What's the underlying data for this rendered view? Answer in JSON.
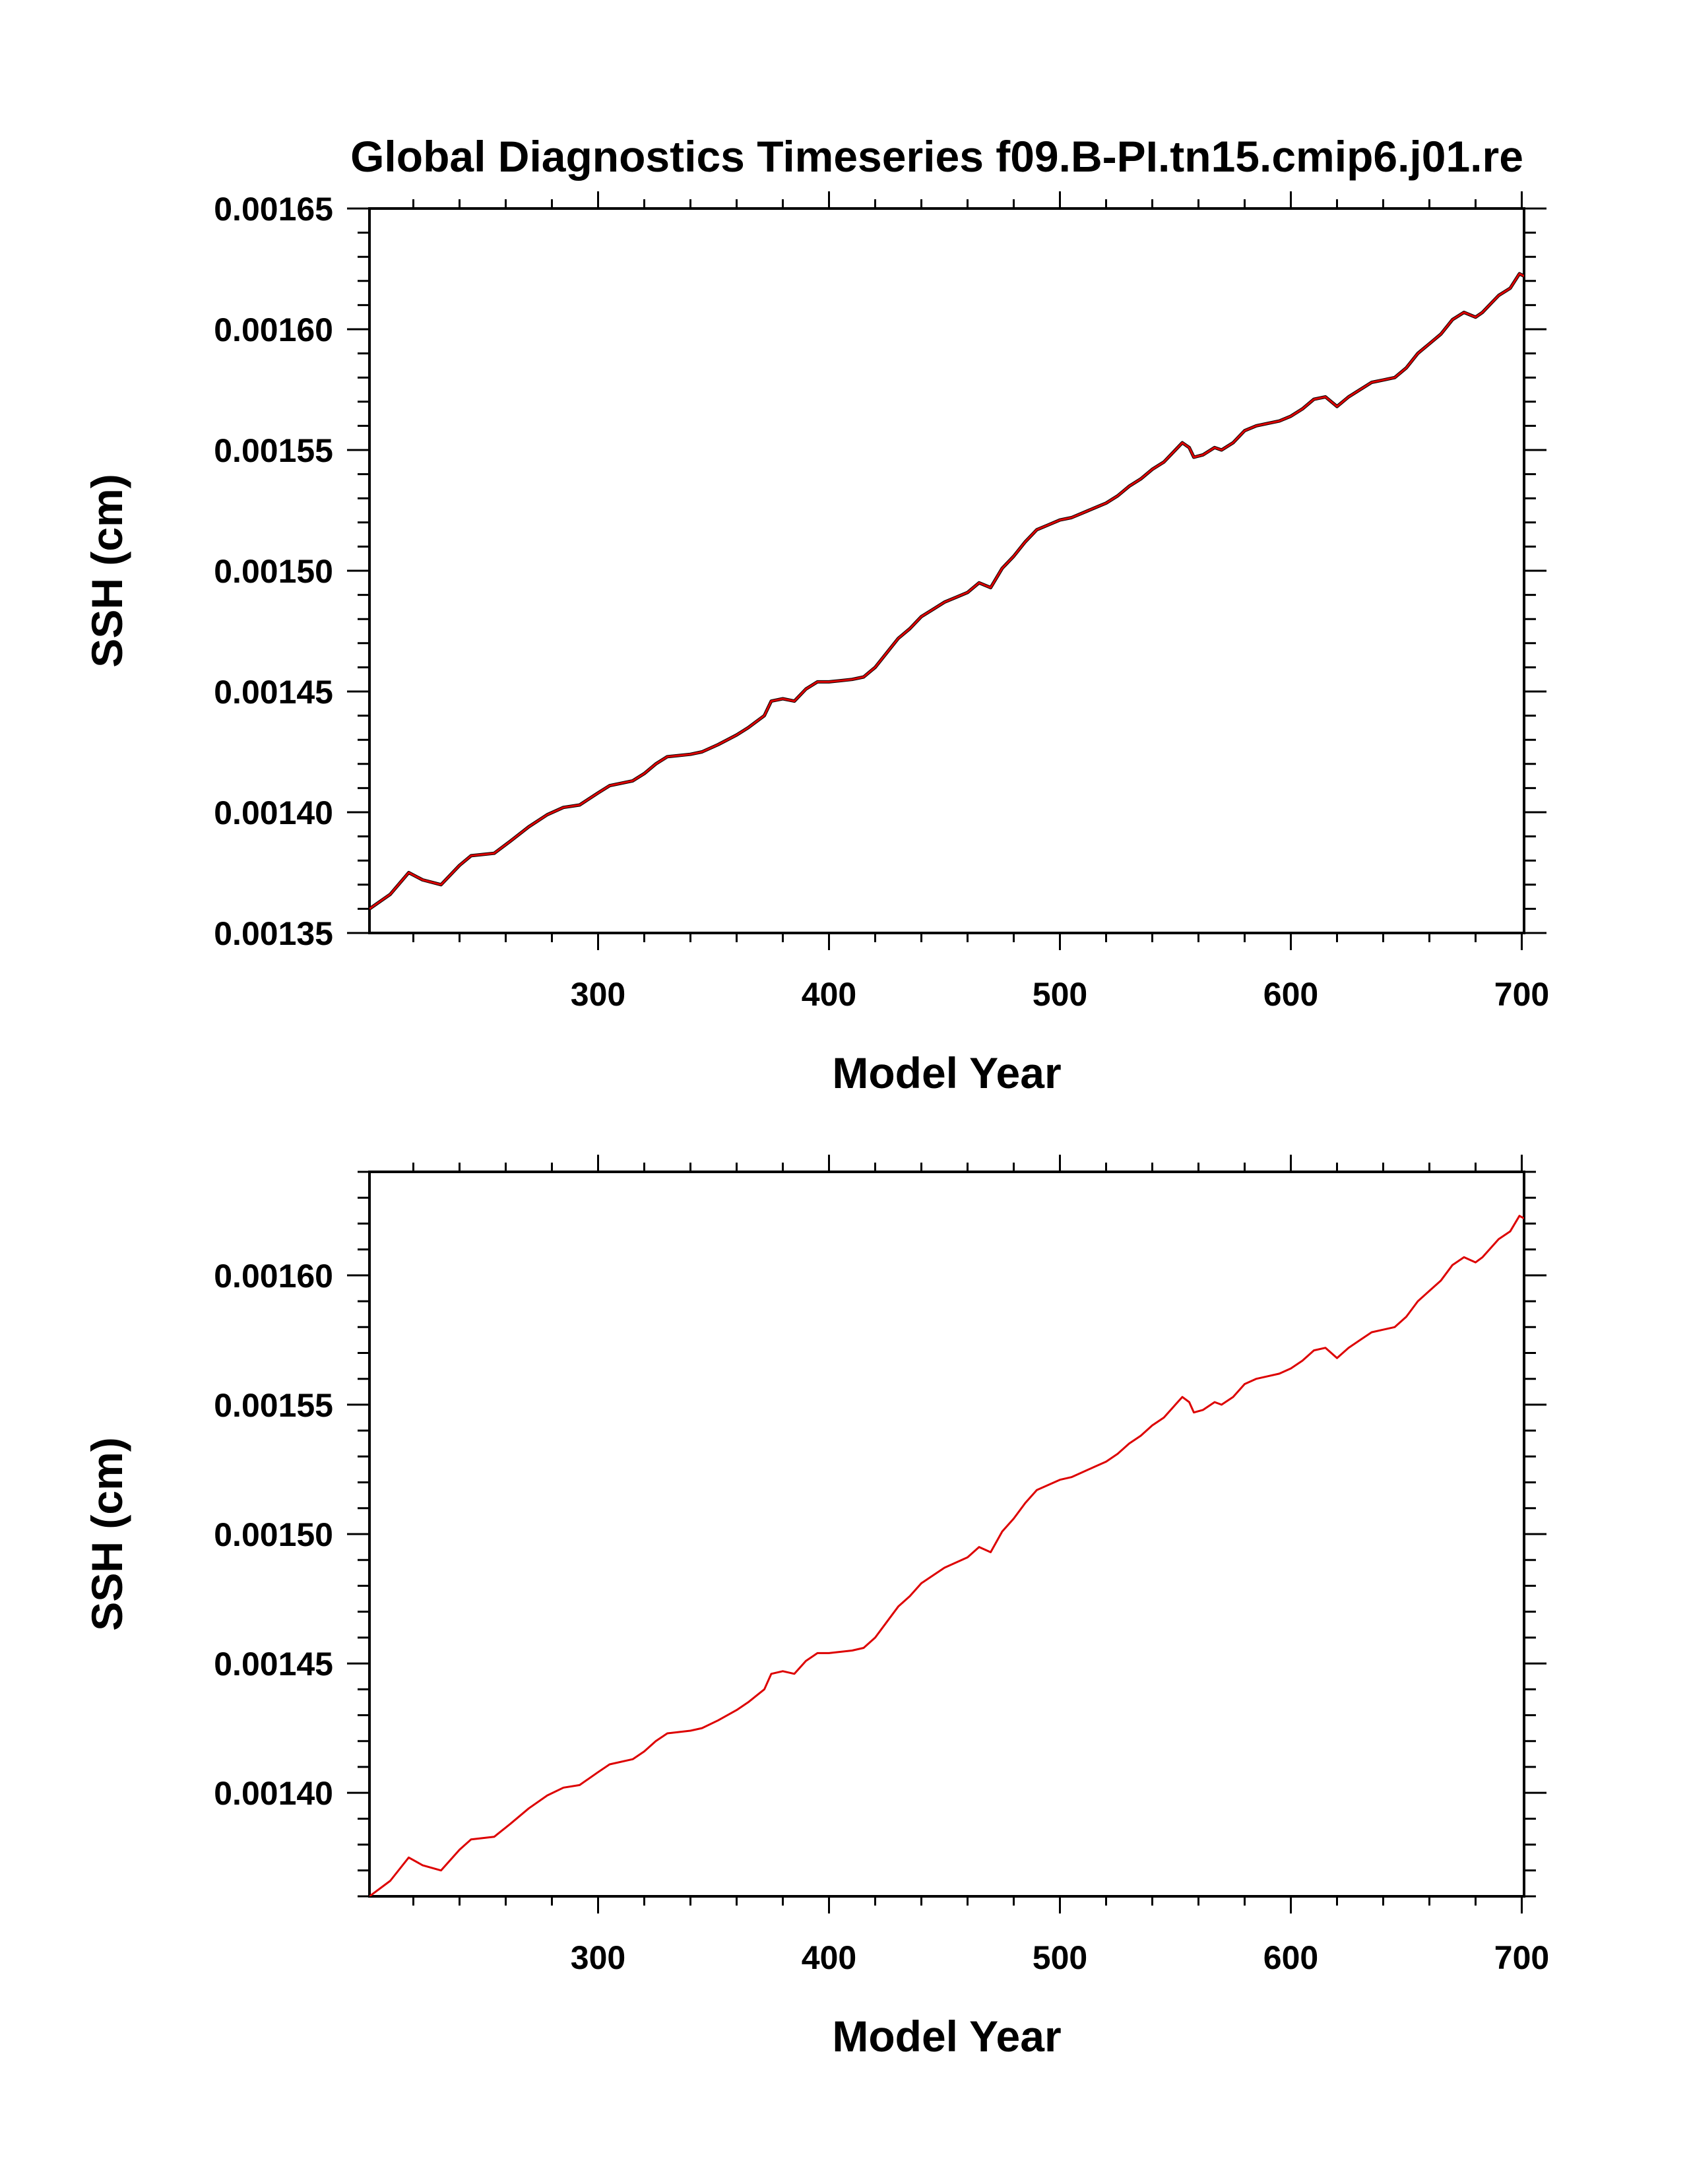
{
  "figure": {
    "title": "Global Diagnostics Timeseries f09.B-PI.tn15.cmip6.j01.re"
  },
  "chart_data": [
    {
      "type": "line",
      "panel": "top",
      "title": "Global Diagnostics Timeseries f09.B-PI.tn15.cmip6.j01.re",
      "xlabel": "Model Year",
      "ylabel": "SSH (cm)",
      "xlim": [
        201,
        701
      ],
      "ylim": [
        0.00135,
        0.00165
      ],
      "xticks": [
        300,
        400,
        500,
        600,
        700
      ],
      "xtick_labels": [
        "300",
        "400",
        "500",
        "600",
        "700"
      ],
      "yticks": [
        0.00135,
        0.0014,
        0.00145,
        0.0015,
        0.00155,
        0.0016,
        0.00165
      ],
      "ytick_labels": [
        "0.00135",
        "0.00140",
        "0.00145",
        "0.00150",
        "0.00155",
        "0.00160",
        "0.00165"
      ],
      "grid": false,
      "series": [
        {
          "color": "#000000",
          "x": [
            201,
            210,
            218,
            224,
            232,
            240,
            245,
            255,
            262,
            270,
            278,
            285,
            292,
            300,
            305,
            315,
            320,
            325,
            330,
            340,
            345,
            352,
            360,
            365,
            372,
            375,
            380,
            385,
            390,
            395,
            400,
            410,
            415,
            420,
            425,
            430,
            435,
            440,
            445,
            450,
            455,
            460,
            465,
            470,
            475,
            480,
            485,
            490,
            495,
            500,
            505,
            510,
            515,
            520,
            525,
            530,
            535,
            540,
            545,
            550,
            553,
            556,
            558,
            562,
            567,
            570,
            575,
            580,
            585,
            590,
            595,
            600,
            605,
            610,
            615,
            620,
            625,
            630,
            635,
            640,
            645,
            650,
            655,
            660,
            665,
            670,
            675,
            680,
            683,
            687,
            690,
            695,
            699,
            701
          ],
          "y": [
            0.00136,
            0.001366,
            0.001375,
            0.001372,
            0.00137,
            0.001378,
            0.001382,
            0.001383,
            0.001388,
            0.001394,
            0.001399,
            0.001402,
            0.001403,
            0.001408,
            0.001411,
            0.001413,
            0.001416,
            0.00142,
            0.001423,
            0.001424,
            0.001425,
            0.001428,
            0.001432,
            0.001435,
            0.00144,
            0.001446,
            0.001447,
            0.001446,
            0.001451,
            0.001454,
            0.001454,
            0.001455,
            0.001456,
            0.00146,
            0.001466,
            0.001472,
            0.001476,
            0.001481,
            0.001484,
            0.001487,
            0.001489,
            0.001491,
            0.001495,
            0.001493,
            0.001501,
            0.001506,
            0.001512,
            0.001517,
            0.001519,
            0.001521,
            0.001522,
            0.001524,
            0.001526,
            0.001528,
            0.001531,
            0.001535,
            0.001538,
            0.001542,
            0.001545,
            0.00155,
            0.001553,
            0.001551,
            0.001547,
            0.001548,
            0.001551,
            0.00155,
            0.001553,
            0.001558,
            0.00156,
            0.001561,
            0.001562,
            0.001564,
            0.001567,
            0.001571,
            0.001572,
            0.001568,
            0.001572,
            0.001575,
            0.001578,
            0.001579,
            0.00158,
            0.001584,
            0.00159,
            0.001594,
            0.001598,
            0.001604,
            0.001607,
            0.001605,
            0.001607,
            0.001611,
            0.001614,
            0.001617,
            0.001623,
            0.001622
          ]
        },
        {
          "color": "#dd0000",
          "x": [
            201,
            210,
            218,
            224,
            232,
            240,
            245,
            255,
            262,
            270,
            278,
            285,
            292,
            300,
            305,
            315,
            320,
            325,
            330,
            340,
            345,
            352,
            360,
            365,
            372,
            375,
            380,
            385,
            390,
            395,
            400,
            410,
            415,
            420,
            425,
            430,
            435,
            440,
            445,
            450,
            455,
            460,
            465,
            470,
            475,
            480,
            485,
            490,
            495,
            500,
            505,
            510,
            515,
            520,
            525,
            530,
            535,
            540,
            545,
            550,
            553,
            556,
            558,
            562,
            567,
            570,
            575,
            580,
            585,
            590,
            595,
            600,
            605,
            610,
            615,
            620,
            625,
            630,
            635,
            640,
            645,
            650,
            655,
            660,
            665,
            670,
            675,
            680,
            683,
            687,
            690,
            695,
            699,
            701
          ],
          "y": [
            0.00136,
            0.001366,
            0.001375,
            0.001372,
            0.00137,
            0.001378,
            0.001382,
            0.001383,
            0.001388,
            0.001394,
            0.001399,
            0.001402,
            0.001403,
            0.001408,
            0.001411,
            0.001413,
            0.001416,
            0.00142,
            0.001423,
            0.001424,
            0.001425,
            0.001428,
            0.001432,
            0.001435,
            0.00144,
            0.001446,
            0.001447,
            0.001446,
            0.001451,
            0.001454,
            0.001454,
            0.001455,
            0.001456,
            0.00146,
            0.001466,
            0.001472,
            0.001476,
            0.001481,
            0.001484,
            0.001487,
            0.001489,
            0.001491,
            0.001495,
            0.001493,
            0.001501,
            0.001506,
            0.001512,
            0.001517,
            0.001519,
            0.001521,
            0.001522,
            0.001524,
            0.001526,
            0.001528,
            0.001531,
            0.001535,
            0.001538,
            0.001542,
            0.001545,
            0.00155,
            0.001553,
            0.001551,
            0.001547,
            0.001548,
            0.001551,
            0.00155,
            0.001553,
            0.001558,
            0.00156,
            0.001561,
            0.001562,
            0.001564,
            0.001567,
            0.001571,
            0.001572,
            0.001568,
            0.001572,
            0.001575,
            0.001578,
            0.001579,
            0.00158,
            0.001584,
            0.00159,
            0.001594,
            0.001598,
            0.001604,
            0.001607,
            0.001605,
            0.001607,
            0.001611,
            0.001614,
            0.001617,
            0.001623,
            0.001622
          ]
        }
      ]
    },
    {
      "type": "line",
      "panel": "bottom",
      "title": "",
      "xlabel": "Model Year",
      "ylabel": "SSH (cm)",
      "xlim": [
        201,
        701
      ],
      "ylim": [
        0.00136,
        0.00164
      ],
      "xticks": [
        300,
        400,
        500,
        600,
        700
      ],
      "xtick_labels": [
        "300",
        "400",
        "500",
        "600",
        "700"
      ],
      "yticks": [
        0.0014,
        0.00145,
        0.0015,
        0.00155,
        0.0016
      ],
      "ytick_labels": [
        "0.00140",
        "0.00145",
        "0.00150",
        "0.00155",
        "0.00160"
      ],
      "grid": false,
      "series": [
        {
          "color": "#dd0000",
          "x": [
            201,
            210,
            218,
            224,
            232,
            240,
            245,
            255,
            262,
            270,
            278,
            285,
            292,
            300,
            305,
            315,
            320,
            325,
            330,
            340,
            345,
            352,
            360,
            365,
            372,
            375,
            380,
            385,
            390,
            395,
            400,
            410,
            415,
            420,
            425,
            430,
            435,
            440,
            445,
            450,
            455,
            460,
            465,
            470,
            475,
            480,
            485,
            490,
            495,
            500,
            505,
            510,
            515,
            520,
            525,
            530,
            535,
            540,
            545,
            550,
            553,
            556,
            558,
            562,
            567,
            570,
            575,
            580,
            585,
            590,
            595,
            600,
            605,
            610,
            615,
            620,
            625,
            630,
            635,
            640,
            645,
            650,
            655,
            660,
            665,
            670,
            675,
            680,
            683,
            687,
            690,
            695,
            699,
            701
          ],
          "y": [
            0.00136,
            0.001366,
            0.001375,
            0.001372,
            0.00137,
            0.001378,
            0.001382,
            0.001383,
            0.001388,
            0.001394,
            0.001399,
            0.001402,
            0.001403,
            0.001408,
            0.001411,
            0.001413,
            0.001416,
            0.00142,
            0.001423,
            0.001424,
            0.001425,
            0.001428,
            0.001432,
            0.001435,
            0.00144,
            0.001446,
            0.001447,
            0.001446,
            0.001451,
            0.001454,
            0.001454,
            0.001455,
            0.001456,
            0.00146,
            0.001466,
            0.001472,
            0.001476,
            0.001481,
            0.001484,
            0.001487,
            0.001489,
            0.001491,
            0.001495,
            0.001493,
            0.001501,
            0.001506,
            0.001512,
            0.001517,
            0.001519,
            0.001521,
            0.001522,
            0.001524,
            0.001526,
            0.001528,
            0.001531,
            0.001535,
            0.001538,
            0.001542,
            0.001545,
            0.00155,
            0.001553,
            0.001551,
            0.001547,
            0.001548,
            0.001551,
            0.00155,
            0.001553,
            0.001558,
            0.00156,
            0.001561,
            0.001562,
            0.001564,
            0.001567,
            0.001571,
            0.001572,
            0.001568,
            0.001572,
            0.001575,
            0.001578,
            0.001579,
            0.00158,
            0.001584,
            0.00159,
            0.001594,
            0.001598,
            0.001604,
            0.001607,
            0.001605,
            0.001607,
            0.001611,
            0.001614,
            0.001617,
            0.001623,
            0.001622
          ]
        }
      ]
    }
  ]
}
